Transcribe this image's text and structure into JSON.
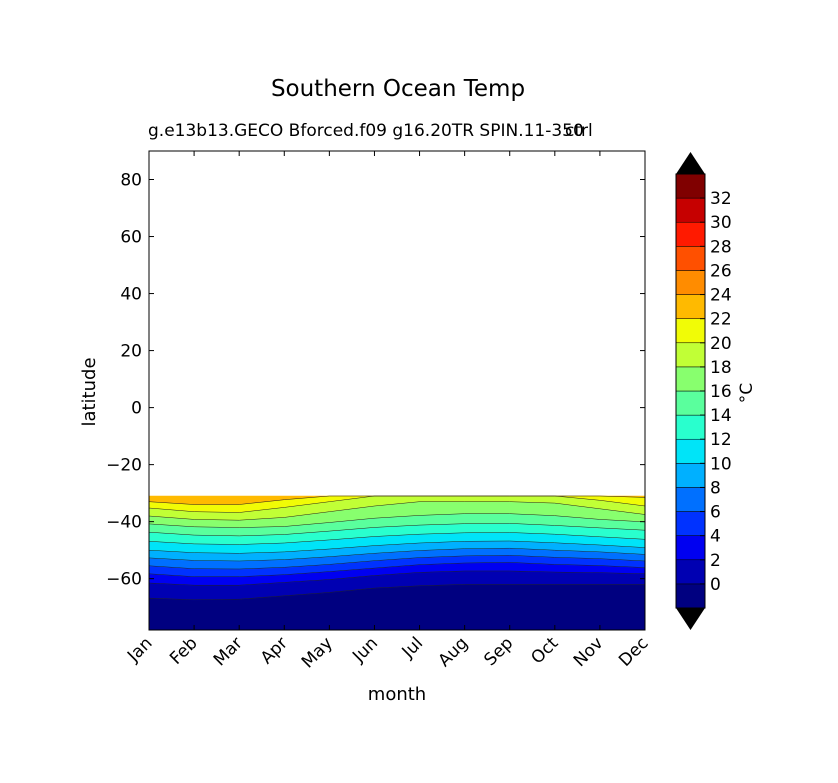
{
  "chart_data": {
    "type": "contourf",
    "title": "Southern Ocean Temp",
    "subtitle_left": "g.e13b13.GECO Bforced.f09 g16.20TR SPIN.11-350",
    "subtitle_right": "ctrl",
    "xlabel": "month",
    "ylabel": "latitude",
    "x_categories": [
      "Jan",
      "Feb",
      "Mar",
      "Apr",
      "May",
      "Jun",
      "Jul",
      "Aug",
      "Sep",
      "Oct",
      "Nov",
      "Dec"
    ],
    "ylim": [
      -78,
      90
    ],
    "y_ticks": [
      80,
      60,
      40,
      20,
      0,
      -20,
      -40,
      -60
    ],
    "y_tick_labels": [
      "80",
      "60",
      "40",
      "20",
      "0",
      "−20",
      "−40",
      "−60"
    ],
    "data_domain_lat": [
      -78,
      -31
    ],
    "colorbar": {
      "label": "°C",
      "levels": [
        -2,
        0,
        2,
        4,
        6,
        8,
        10,
        12,
        14,
        16,
        18,
        20,
        22,
        24,
        26,
        28,
        30,
        32
      ],
      "tick_labels": [
        "0",
        "2",
        "4",
        "6",
        "8",
        "10",
        "12",
        "14",
        "16",
        "18",
        "20",
        "22",
        "24",
        "26",
        "28",
        "30",
        "32"
      ],
      "colors": [
        "#000080",
        "#0000b2",
        "#0000f1",
        "#0032ff",
        "#0070ff",
        "#00b0ff",
        "#00e4f8",
        "#29ffce",
        "#5aff9d",
        "#88ff6e",
        "#c1ff36",
        "#f1fc06",
        "#ffba00",
        "#ff8c00",
        "#ff5000",
        "#ff1a00",
        "#c60000",
        "#800000"
      ],
      "extend": "both",
      "extend_colors": [
        "#000000",
        "#000000"
      ]
    },
    "isotherm_latitudes_by_month": {
      "months": [
        1,
        2,
        3,
        4,
        5,
        6,
        7,
        8,
        9,
        10,
        11,
        12
      ],
      "t_0": [
        -66.8,
        -67.4,
        -67.2,
        -66.0,
        -64.8,
        -63.3,
        -62.5,
        -62.0,
        -62.0,
        -62.0,
        -62.0,
        -62.0
      ],
      "t_2": [
        -61.5,
        -62.3,
        -62.3,
        -61.3,
        -60.3,
        -58.9,
        -57.8,
        -57.3,
        -57.3,
        -57.7,
        -57.9,
        -58.3
      ],
      "t_4": [
        -58.3,
        -59.3,
        -59.3,
        -58.6,
        -57.5,
        -56.3,
        -55.1,
        -54.5,
        -54.3,
        -55.0,
        -55.4,
        -56.1
      ],
      "t_6": [
        -55.5,
        -56.5,
        -56.6,
        -56.0,
        -55.0,
        -53.7,
        -52.6,
        -52.0,
        -51.8,
        -52.5,
        -53.0,
        -53.8
      ],
      "t_8": [
        -52.7,
        -53.6,
        -53.8,
        -53.3,
        -52.3,
        -51.1,
        -50.1,
        -49.5,
        -49.3,
        -50.0,
        -50.6,
        -51.5
      ],
      "t_10": [
        -50.0,
        -50.9,
        -51.1,
        -50.6,
        -49.6,
        -48.4,
        -47.5,
        -46.9,
        -46.8,
        -47.4,
        -48.2,
        -49.1
      ],
      "t_12": [
        -46.9,
        -47.8,
        -48.0,
        -47.5,
        -46.4,
        -45.2,
        -44.4,
        -43.9,
        -43.8,
        -44.4,
        -45.3,
        -46.2
      ],
      "t_14": [
        -43.7,
        -44.7,
        -45.0,
        -44.5,
        -43.3,
        -42.0,
        -41.2,
        -40.7,
        -40.6,
        -41.3,
        -42.2,
        -43.0
      ],
      "t_16": [
        -40.8,
        -41.8,
        -42.1,
        -41.7,
        -40.3,
        -38.8,
        -37.8,
        -37.2,
        -37.2,
        -37.9,
        -39.2,
        -40.1
      ],
      "t_18": [
        -38.0,
        -39.2,
        -39.5,
        -38.5,
        -36.5,
        -34.5,
        -33.0,
        -33.0,
        -33.0,
        -33.5,
        -35.5,
        -37.5
      ],
      "t_20": [
        -35.2,
        -36.5,
        -36.8,
        -35.0,
        -33.0,
        -31.0,
        -31.0,
        -31.0,
        -31.0,
        -31.0,
        -32.5,
        -34.5
      ],
      "t_22": [
        -33.0,
        -34.0,
        -34.0,
        -32.3,
        -31.0,
        -31.0,
        -31.0,
        -31.0,
        -31.0,
        -31.0,
        -31.0,
        -31.5
      ]
    }
  }
}
